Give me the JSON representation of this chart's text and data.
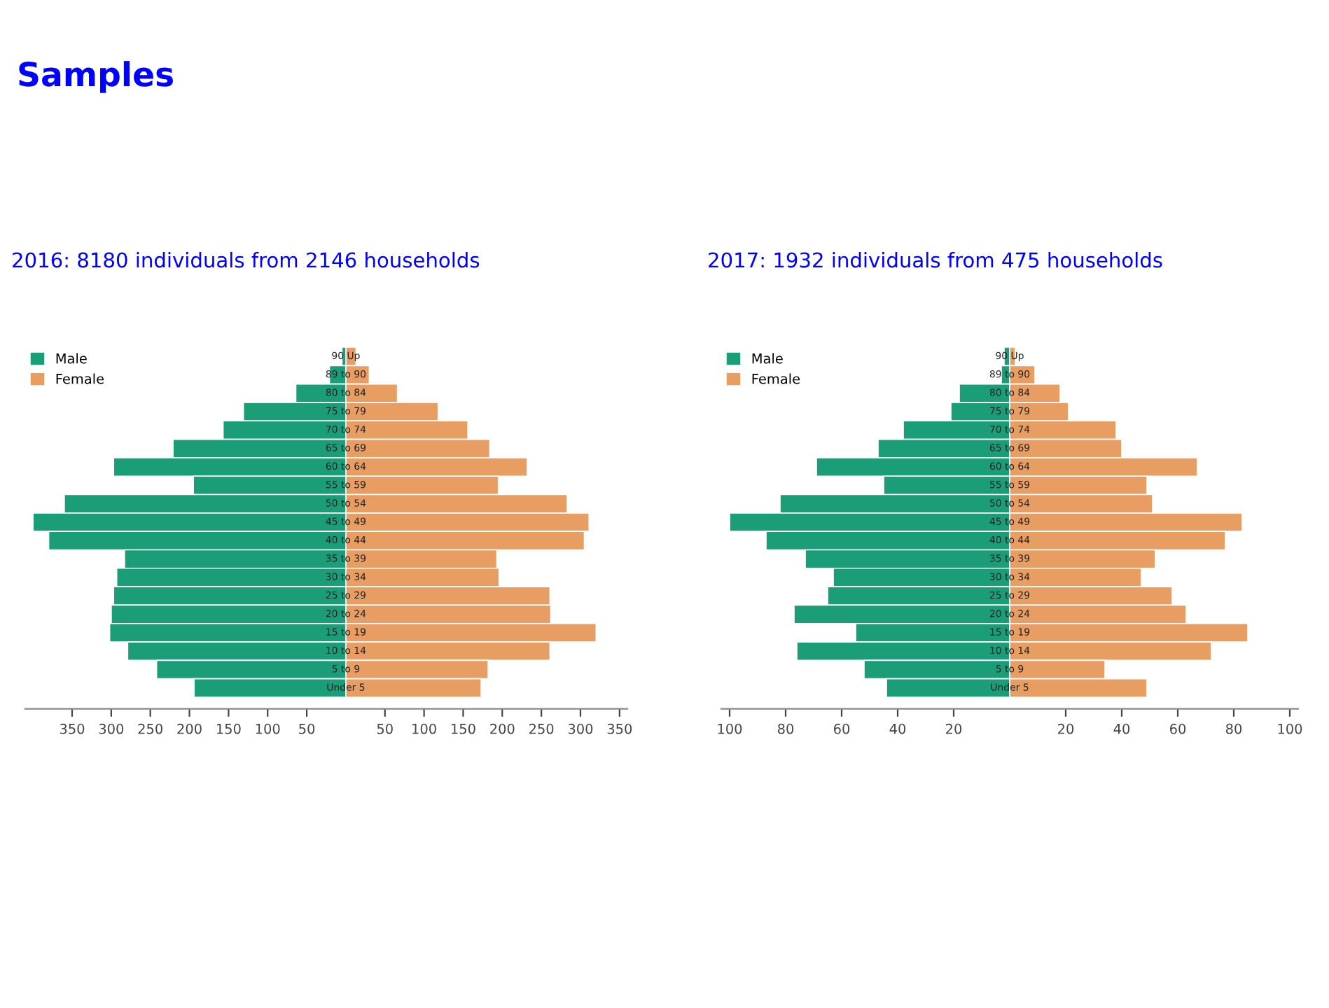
{
  "chart_data": [
    {
      "type": "bar",
      "orientation": "horizontal",
      "stacked": true,
      "title": "Samples",
      "subtitle": "2016: 8180 individuals from 2146 households",
      "categories": [
        "90 Up",
        "89 to 90",
        "80 to 84",
        "75 to 79",
        "70 to 74",
        "65 to 69",
        "60 to 64",
        "55 to 59",
        "50 to 54",
        "45 to 49",
        "40 to 44",
        "35 to 39",
        "30 to 34",
        "25 to 29",
        "20 to 24",
        "15 to 19",
        "10 to 14",
        "5 to 9",
        "Under 5"
      ],
      "series": [
        {
          "name": "Male",
          "color": "#1b9e77",
          "values": [
            -5,
            -21,
            -64,
            -131,
            -157,
            -221,
            -297,
            -195,
            -360,
            -400,
            -380,
            -283,
            -293,
            -297,
            -300,
            -302,
            -279,
            -242,
            -194
          ]
        },
        {
          "name": "Female",
          "color": "#e89d63",
          "values": [
            13,
            30,
            66,
            118,
            156,
            184,
            232,
            195,
            283,
            311,
            305,
            193,
            196,
            261,
            262,
            320,
            261,
            182,
            173
          ]
        }
      ],
      "xlim": [
        -410,
        360
      ],
      "xticks": [
        {
          "value": -350,
          "label": "350"
        },
        {
          "value": -300,
          "label": "300"
        },
        {
          "value": -250,
          "label": "250"
        },
        {
          "value": -200,
          "label": "200"
        },
        {
          "value": -150,
          "label": "150"
        },
        {
          "value": -100,
          "label": "100"
        },
        {
          "value": -50,
          "label": "50"
        },
        50,
        100,
        150,
        200,
        250,
        300,
        350
      ],
      "tick_labels": "x",
      "legend": "top left",
      "grid": false
    },
    {
      "type": "bar",
      "orientation": "horizontal",
      "stacked": true,
      "subtitle": "2017: 1932 individuals from 475 households",
      "categories": [
        "90 Up",
        "89 to 90",
        "80 to 84",
        "75 to 79",
        "70 to 74",
        "65 to 69",
        "60 to 64",
        "55 to 59",
        "50 to 54",
        "45 to 49",
        "40 to 44",
        "35 to 39",
        "30 to 34",
        "25 to 29",
        "20 to 24",
        "15 to 19",
        "10 to 14",
        "5 to 9",
        "Under 5"
      ],
      "series": [
        {
          "name": "Male",
          "color": "#1b9e77",
          "values": [
            -2,
            -3,
            -18,
            -21,
            -38,
            -47,
            -69,
            -45,
            -82,
            -100,
            -87,
            -73,
            -63,
            -65,
            -77,
            -55,
            -76,
            -52,
            -44
          ]
        },
        {
          "name": "Female",
          "color": "#e89d63",
          "values": [
            2,
            9,
            18,
            21,
            38,
            40,
            67,
            49,
            51,
            83,
            77,
            52,
            47,
            58,
            63,
            85,
            72,
            34,
            49
          ]
        }
      ],
      "xlim": [
        -103,
        103
      ],
      "xticks": [
        {
          "value": -100,
          "label": "100"
        },
        {
          "value": -80,
          "label": "80"
        },
        {
          "value": -60,
          "label": "60"
        },
        {
          "value": -40,
          "label": "40"
        },
        {
          "value": -20,
          "label": "20"
        },
        20,
        40,
        60,
        80,
        100
      ],
      "tick_labels": "x",
      "legend": "top left",
      "grid": false
    }
  ]
}
